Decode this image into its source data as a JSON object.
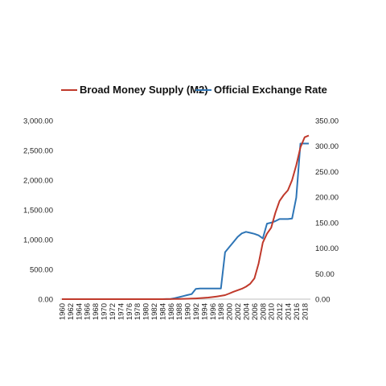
{
  "chart_data": {
    "type": "line",
    "legend": {
      "placement": "top",
      "entries": [
        "Broad Money Supply (M2)",
        "Official Exchange Rate"
      ]
    },
    "x": [
      1960,
      1961,
      1962,
      1963,
      1964,
      1965,
      1966,
      1967,
      1968,
      1969,
      1970,
      1971,
      1972,
      1973,
      1974,
      1975,
      1976,
      1977,
      1978,
      1979,
      1980,
      1981,
      1982,
      1983,
      1984,
      1985,
      1986,
      1987,
      1988,
      1989,
      1990,
      1991,
      1992,
      1993,
      1994,
      1995,
      1996,
      1997,
      1998,
      1999,
      2000,
      2001,
      2002,
      2003,
      2004,
      2005,
      2006,
      2007,
      2008,
      2009,
      2010,
      2011,
      2012,
      2013,
      2014,
      2015,
      2016,
      2017,
      2018,
      2019
    ],
    "x_tick_labels": [
      "1960",
      "1962",
      "1964",
      "1966",
      "1968",
      "1970",
      "1972",
      "1974",
      "1976",
      "1978",
      "1980",
      "1982",
      "1984",
      "1986",
      "1988",
      "1990",
      "1992",
      "1994",
      "1996",
      "1998",
      "2000",
      "2002",
      "2004",
      "2006",
      "2008",
      "2010",
      "2012",
      "2014",
      "2016",
      "2018"
    ],
    "y_left": {
      "range": [
        0,
        3000
      ],
      "ticks": [
        "0.00",
        "500.00",
        "1,000.00",
        "1,500.00",
        "2,000.00",
        "2,500.00",
        "3,000.00"
      ]
    },
    "y_right": {
      "range": [
        0,
        350
      ],
      "ticks": [
        "0.00",
        "50.00",
        "100.00",
        "150.00",
        "200.00",
        "250.00",
        "300.00",
        "350.00"
      ]
    },
    "grid": false,
    "series": [
      {
        "name": "Broad Money Supply (M2)",
        "axis": "left",
        "color": "#c0392b",
        "values": [
          0,
          0,
          0,
          0,
          0,
          0,
          0,
          0,
          0,
          0,
          0,
          0,
          0,
          0,
          0,
          0,
          0,
          0,
          0,
          0,
          0,
          0,
          0,
          0,
          0,
          1,
          2,
          3,
          4,
          5,
          7,
          9,
          12,
          16,
          21,
          27,
          35,
          45,
          55,
          68,
          95,
          125,
          150,
          175,
          210,
          260,
          350,
          600,
          950,
          1100,
          1200,
          1450,
          1650,
          1750,
          1830,
          2000,
          2250,
          2550,
          2720,
          2750
        ]
      },
      {
        "name": "Official Exchange Rate",
        "axis": "right",
        "color": "#2e75b6",
        "values": [
          0,
          0,
          0,
          0,
          0,
          0,
          0,
          0,
          0,
          0,
          0,
          0,
          0,
          0,
          0,
          0,
          0,
          0,
          0,
          0,
          0,
          0,
          0,
          0,
          0,
          0.1,
          0.5,
          2,
          4,
          6,
          8,
          10,
          20,
          21,
          21,
          21,
          21,
          21,
          21,
          92,
          102,
          112,
          122,
          129,
          132,
          130,
          128,
          125,
          119,
          148,
          150,
          153,
          157,
          157,
          157,
          158,
          199,
          305,
          305,
          305
        ]
      }
    ]
  }
}
